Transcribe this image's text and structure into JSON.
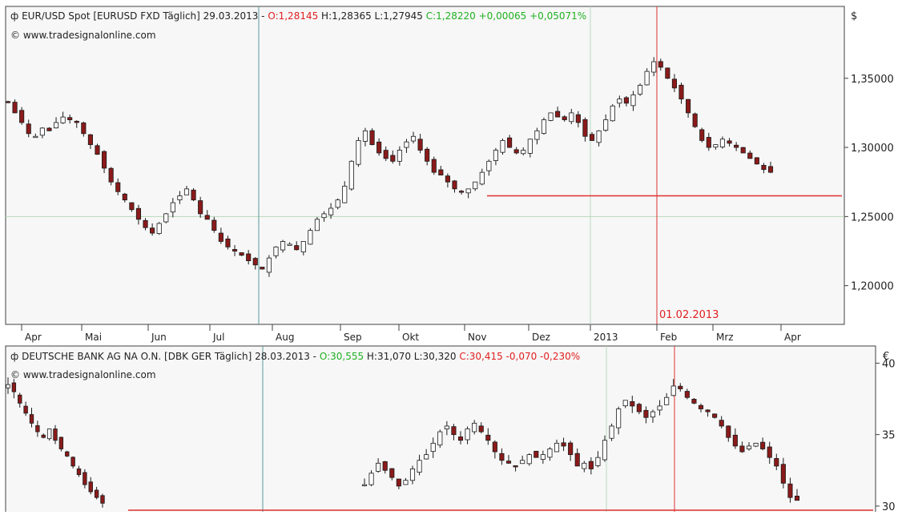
{
  "chart_data": [
    {
      "type": "candlestick",
      "header": {
        "prefix": "EUR/USD Spot [EURUSD FXD  Täglich] 29.03.2013 - ",
        "open": "O:1,28145",
        "hlc": " H:1,28365 L:1,27945 ",
        "change": "C:1,28220 +0,00065 +0,05071%"
      },
      "source": "© www.tradesignalonline.com",
      "currency": "$",
      "y_ticks": [
        "1,35000",
        "1,30000",
        "1,25000",
        "1,20000"
      ],
      "y_values": [
        1.35,
        1.3,
        1.25,
        1.2
      ],
      "ylim": [
        1.172,
        1.402
      ],
      "x_labels": [
        "Apr",
        "Mai",
        "Jun",
        "Jul",
        "Aug",
        "Sep",
        "Okt",
        "Nov",
        "Dez",
        "2013",
        "Feb",
        "Mrz",
        "Apr"
      ],
      "marker_date": "01.02.2013",
      "support_level": 1.265,
      "grid_level": 1.25,
      "series": [
        1.333,
        1.325,
        1.318,
        1.31,
        1.308,
        1.314,
        1.312,
        1.318,
        1.322,
        1.32,
        1.318,
        1.31,
        1.302,
        1.295,
        1.285,
        1.275,
        1.268,
        1.262,
        1.255,
        1.248,
        1.242,
        1.238,
        1.245,
        1.252,
        1.26,
        1.265,
        1.27,
        1.262,
        1.252,
        1.248,
        1.24,
        1.232,
        1.228,
        1.225,
        1.222,
        1.218,
        1.215,
        1.212,
        1.22,
        1.228,
        1.232,
        1.23,
        1.226,
        1.232,
        1.24,
        1.248,
        1.252,
        1.256,
        1.262,
        1.272,
        1.29,
        1.305,
        1.312,
        1.302,
        1.296,
        1.292,
        1.29,
        1.298,
        1.304,
        1.308,
        1.298,
        1.29,
        1.282,
        1.28,
        1.275,
        1.27,
        1.268,
        1.27,
        1.275,
        1.282,
        1.29,
        1.298,
        1.305,
        1.3,
        1.296,
        1.298,
        1.306,
        1.312,
        1.32,
        1.325,
        1.322,
        1.32,
        1.325,
        1.318,
        1.308,
        1.305,
        1.312,
        1.32,
        1.33,
        1.335,
        1.332,
        1.338,
        1.345,
        1.355,
        1.362,
        1.358,
        1.35,
        1.343,
        1.335,
        1.325,
        1.315,
        1.305,
        1.3,
        1.302,
        1.306,
        1.303,
        1.3,
        1.296,
        1.292,
        1.288,
        1.284,
        1.282
      ]
    },
    {
      "type": "candlestick",
      "header": {
        "prefix": "DEUTSCHE BANK AG NA O.N. [DBK GER  Täglich] 28.03.2013 - ",
        "open": "O:30,555",
        "hlc": " H:31,070 L:30,320 ",
        "change": "C:30,415 -0,070 -0,230%"
      },
      "source": "© www.tradesignalonline.com",
      "currency": "€",
      "y_ticks": [
        "40",
        "35",
        "30"
      ],
      "y_values": [
        40,
        35,
        30
      ],
      "ylim": [
        29.6,
        41.2
      ],
      "support_level": 30.0,
      "series_a": [
        38.5,
        38.0,
        37.2,
        36.5,
        35.8,
        35.2,
        34.8,
        35.4,
        34.6,
        34.0,
        33.5,
        32.8,
        32.2,
        31.5,
        31.0,
        30.6,
        30.2
      ],
      "series_b": [
        31.5,
        32.3,
        33.0,
        32.5,
        32.0,
        31.4,
        31.8,
        32.6,
        33.2,
        33.6,
        34.4,
        35.2,
        35.6,
        35.0,
        34.6,
        35.4,
        35.8,
        35.2,
        34.6,
        33.8,
        33.2,
        33.0,
        32.8,
        33.2,
        33.6,
        33.4,
        33.6,
        34.0,
        34.4,
        34.2,
        33.6,
        32.8,
        33.0,
        32.6,
        33.4,
        34.6,
        35.6,
        36.8,
        37.4,
        37.0,
        36.6,
        36.2,
        36.6,
        37.0,
        37.6,
        38.4,
        38.2,
        37.6,
        37.2,
        36.8,
        36.6,
        36.2,
        35.6,
        34.8,
        34.2,
        33.8,
        34.2,
        34.4,
        34.0,
        33.4,
        32.8,
        31.6,
        30.6,
        30.4
      ]
    }
  ]
}
